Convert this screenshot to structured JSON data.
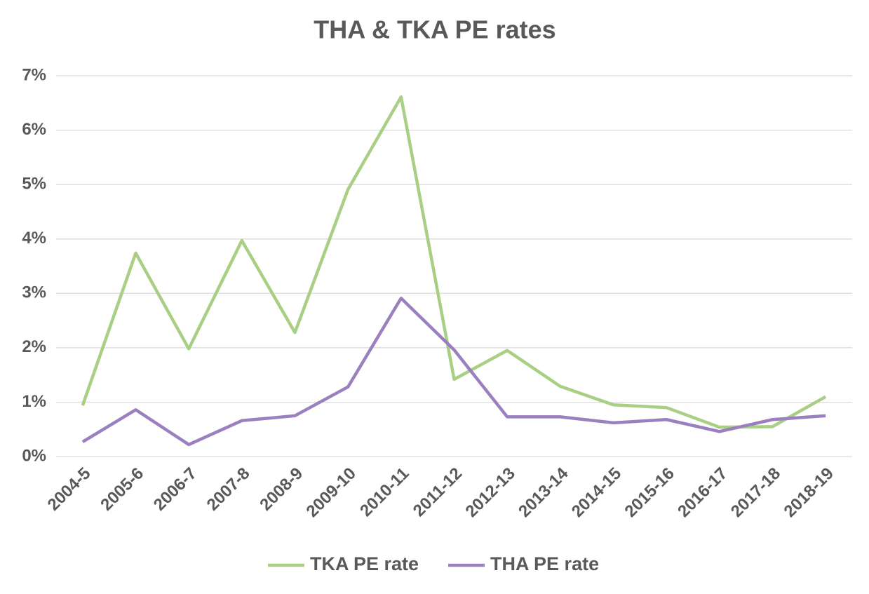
{
  "chart_data": {
    "type": "line",
    "title": "THA & TKA PE rates",
    "categories": [
      "2004-5",
      "2005-6",
      "2006-7",
      "2007-8",
      "2008-9",
      "2009-10",
      "2010-11",
      "2011-12",
      "2012-13",
      "2013-14",
      "2014-15",
      "2015-16",
      "2016-17",
      "2017-18",
      "2018-19"
    ],
    "series": [
      {
        "name": "TKA PE rate",
        "color": "#a9cf85",
        "values": [
          0.94,
          3.74,
          1.98,
          3.97,
          2.28,
          4.91,
          6.61,
          1.42,
          1.95,
          1.29,
          0.95,
          0.9,
          0.54,
          0.55,
          1.1
        ]
      },
      {
        "name": "THA PE rate",
        "color": "#9a80bf",
        "values": [
          0.27,
          0.86,
          0.22,
          0.66,
          0.75,
          1.28,
          2.91,
          1.96,
          0.73,
          0.73,
          0.62,
          0.68,
          0.46,
          0.68,
          0.75
        ]
      }
    ],
    "ylim": [
      0,
      7
    ],
    "yticks": [
      {
        "value": 0,
        "label": "0%"
      },
      {
        "value": 1,
        "label": "1%"
      },
      {
        "value": 2,
        "label": "2%"
      },
      {
        "value": 3,
        "label": "3%"
      },
      {
        "value": 4,
        "label": "4%"
      },
      {
        "value": 5,
        "label": "5%"
      },
      {
        "value": 6,
        "label": "6%"
      },
      {
        "value": 7,
        "label": "7%"
      }
    ],
    "grid": true,
    "legend": "bottom"
  }
}
